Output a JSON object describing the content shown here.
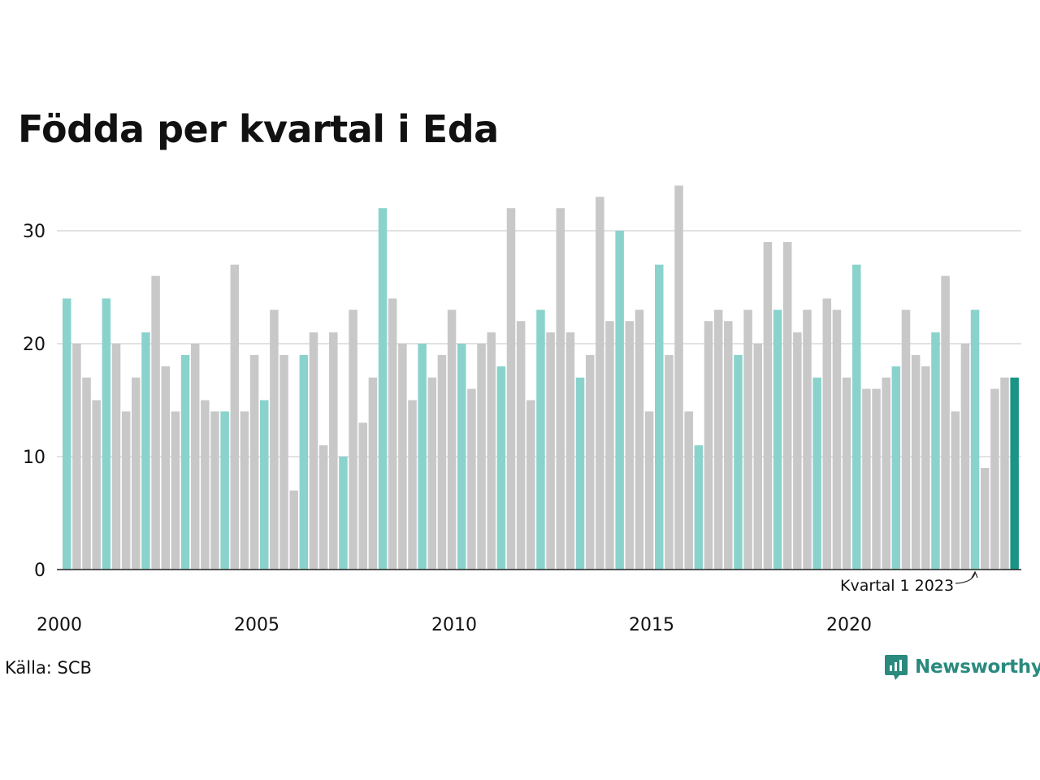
{
  "chart_data": {
    "type": "bar",
    "title": "Födda per kvartal i Eda",
    "xlabel": "",
    "ylabel": "",
    "ylim": [
      0,
      35
    ],
    "yticks": [
      0,
      10,
      20,
      30
    ],
    "xtick_labels": [
      "2000",
      "2005",
      "2010",
      "2015",
      "2020"
    ],
    "grid": "horizontal",
    "series": [
      {
        "x": [
          "2000Q1",
          "2000Q2",
          "2000Q3",
          "2000Q4",
          "2001Q1",
          "2001Q2",
          "2001Q3",
          "2001Q4",
          "2002Q1",
          "2002Q2",
          "2002Q3",
          "2002Q4",
          "2003Q1",
          "2003Q2",
          "2003Q3",
          "2003Q4",
          "2004Q1",
          "2004Q2",
          "2004Q3",
          "2004Q4",
          "2005Q1",
          "2005Q2",
          "2005Q3",
          "2005Q4",
          "2006Q1",
          "2006Q2",
          "2006Q3",
          "2006Q4",
          "2007Q1",
          "2007Q2",
          "2007Q3",
          "2007Q4",
          "2008Q1",
          "2008Q2",
          "2008Q3",
          "2008Q4",
          "2009Q1",
          "2009Q2",
          "2009Q3",
          "2009Q4",
          "2010Q1",
          "2010Q2",
          "2010Q3",
          "2010Q4",
          "2011Q1",
          "2011Q2",
          "2011Q3",
          "2011Q4",
          "2012Q1",
          "2012Q2",
          "2012Q3",
          "2012Q4",
          "2013Q1",
          "2013Q2",
          "2013Q3",
          "2013Q4",
          "2014Q1",
          "2014Q2",
          "2014Q3",
          "2014Q4",
          "2015Q1",
          "2015Q2",
          "2015Q3",
          "2015Q4",
          "2016Q1",
          "2016Q2",
          "2016Q3",
          "2016Q4",
          "2017Q1",
          "2017Q2",
          "2017Q3",
          "2017Q4",
          "2018Q1",
          "2018Q2",
          "2018Q3",
          "2018Q4",
          "2019Q1",
          "2019Q2",
          "2019Q3",
          "2019Q4",
          "2020Q1",
          "2020Q2",
          "2020Q3",
          "2020Q4",
          "2021Q1",
          "2021Q2",
          "2021Q3",
          "2021Q4",
          "2022Q1",
          "2022Q2",
          "2022Q3",
          "2022Q4",
          "2023Q1",
          "2023Q2",
          "2023Q3",
          "2023Q4",
          "2024Q1"
        ],
        "values": [
          24,
          20,
          17,
          15,
          24,
          20,
          14,
          17,
          21,
          26,
          18,
          14,
          19,
          20,
          15,
          14,
          14,
          27,
          14,
          19,
          15,
          23,
          19,
          7,
          19,
          21,
          11,
          21,
          10,
          23,
          13,
          17,
          32,
          24,
          20,
          15,
          20,
          17,
          19,
          23,
          20,
          16,
          20,
          21,
          18,
          32,
          22,
          15,
          23,
          21,
          32,
          21,
          17,
          19,
          33,
          22,
          30,
          22,
          23,
          14,
          27,
          19,
          34,
          14,
          11,
          22,
          23,
          22,
          19,
          23,
          20,
          29,
          23,
          29,
          21,
          23,
          17,
          24,
          23,
          17,
          27,
          16,
          16,
          17,
          18,
          23,
          19,
          18,
          21,
          26,
          14,
          20,
          23,
          9,
          16,
          17,
          17
        ]
      }
    ],
    "colors": {
      "q1": "#8ad3cc",
      "other": "#c8c8c8",
      "latest": "#1a9485",
      "grid": "#e2e2e2",
      "axis": "#222222"
    },
    "annotation": "Kvartal 1 2023"
  },
  "source_label": "Källa: SCB",
  "brand": {
    "name": "Newsworthy",
    "icon": "chart-bubble-icon",
    "color": "#2a8a7e"
  }
}
